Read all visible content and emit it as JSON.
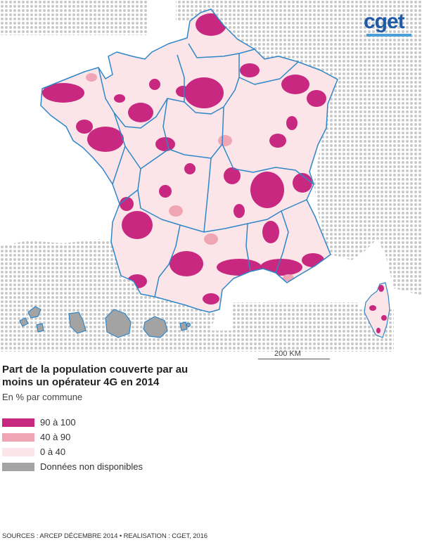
{
  "logo": "cget",
  "scale": {
    "label": "200 KM"
  },
  "title": "Part de la population couverte par au moins un opérateur 4G en 2014",
  "subtitle": "En % par commune",
  "legend": [
    {
      "label": "90 à 100",
      "color": "#c8287f"
    },
    {
      "label": "40 à 90",
      "color": "#f0a5b5"
    },
    {
      "label": "0 à 40",
      "color": "#fbe5e8"
    },
    {
      "label": "Données non disponibles",
      "color": "#a3a3a3"
    }
  ],
  "sources": "SOURCES : ARCEP DÉCEMBRE 2014 • REALISATION : CGET, 2016",
  "colors": {
    "border": "#2f86c8",
    "dots": "#c9c9c9"
  }
}
